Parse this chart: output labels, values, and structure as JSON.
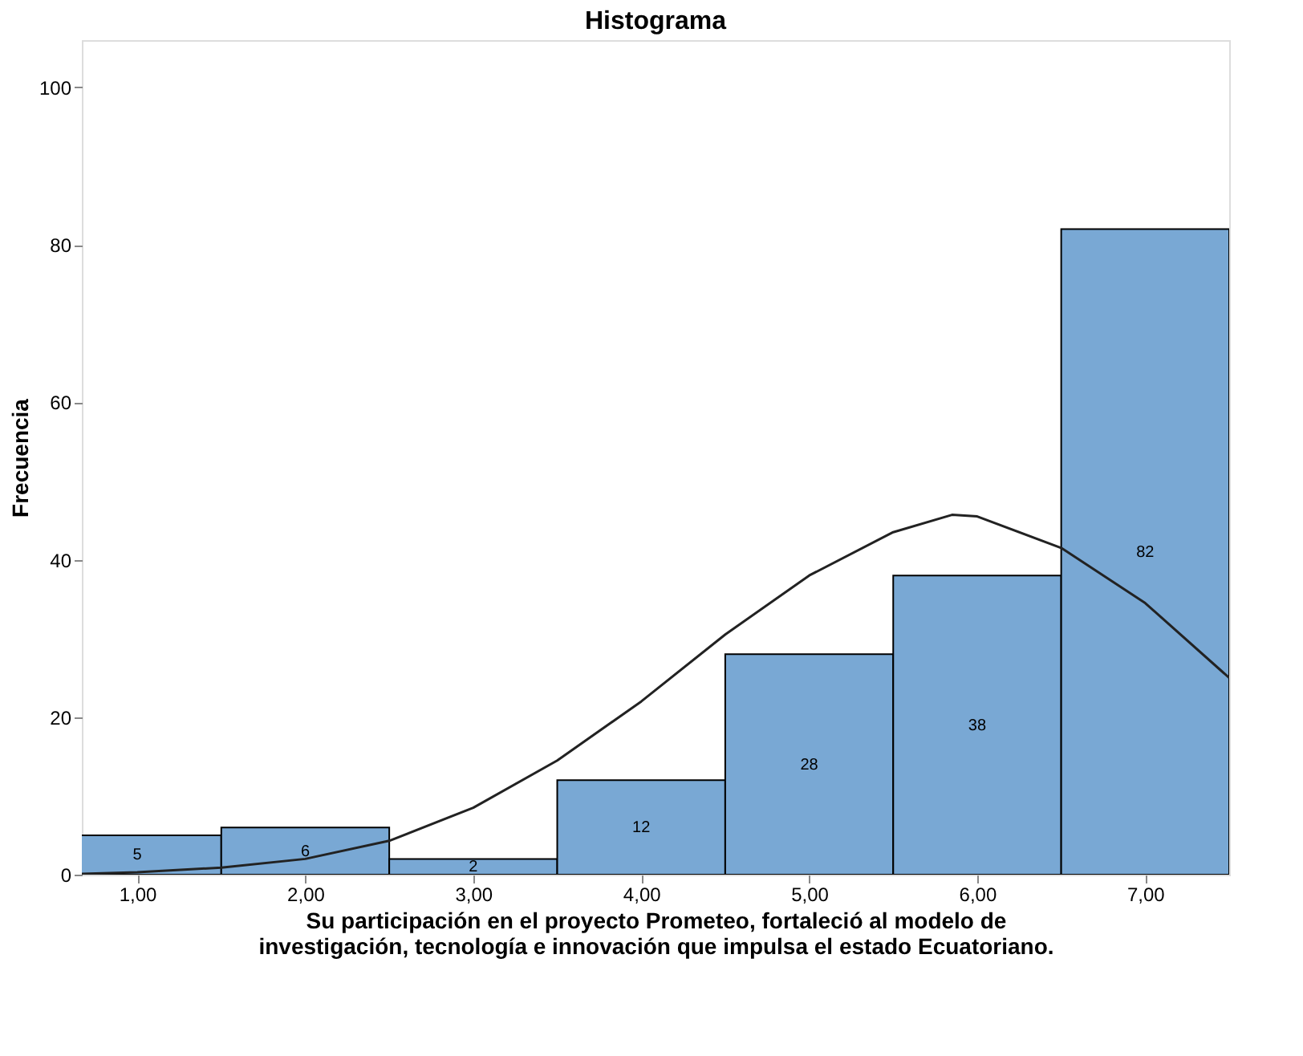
{
  "chart_data": {
    "type": "histogram",
    "title": "Histograma",
    "xlabel": "Su participación en el proyecto Prometeo, fortaleció al modelo de\ninvestigación, tecnología e innovación que impulsa el estado Ecuatoriano.",
    "ylabel": "Frecuencia",
    "bins": [
      0.5,
      1.5,
      2.5,
      3.5,
      4.5,
      5.5,
      6.5,
      7.5
    ],
    "values": [
      5,
      6,
      2,
      12,
      28,
      38,
      82
    ],
    "color": "#79a8d4",
    "value_labels": [
      "5",
      "6",
      "2",
      "12",
      "28",
      "38",
      "82"
    ],
    "xlim": [
      0.67,
      7.5
    ],
    "xticks": [
      {
        "value": 1,
        "label": "1,00"
      },
      {
        "value": 2,
        "label": "2,00"
      },
      {
        "value": 3,
        "label": "3,00"
      },
      {
        "value": 4,
        "label": "4,00"
      },
      {
        "value": 5,
        "label": "5,00"
      },
      {
        "value": 6,
        "label": "6,00"
      },
      {
        "value": 7,
        "label": "7,00"
      }
    ],
    "ylim": [
      0,
      106
    ],
    "yticks": [
      0,
      20,
      40,
      60,
      80,
      100
    ],
    "grid": false,
    "series": [
      {
        "type": "line",
        "color": "#222222",
        "x": [
          0.67,
          1,
          1.5,
          2,
          2.5,
          3,
          3.5,
          4,
          4.5,
          5,
          5.5,
          5.85,
          6,
          6.5,
          7,
          7.5
        ],
        "values": [
          0.1,
          0.3,
          0.9,
          2,
          4.3,
          8.5,
          14.5,
          22,
          30.5,
          38,
          43.5,
          45.7,
          45.5,
          41.5,
          34.5,
          25
        ]
      }
    ]
  }
}
